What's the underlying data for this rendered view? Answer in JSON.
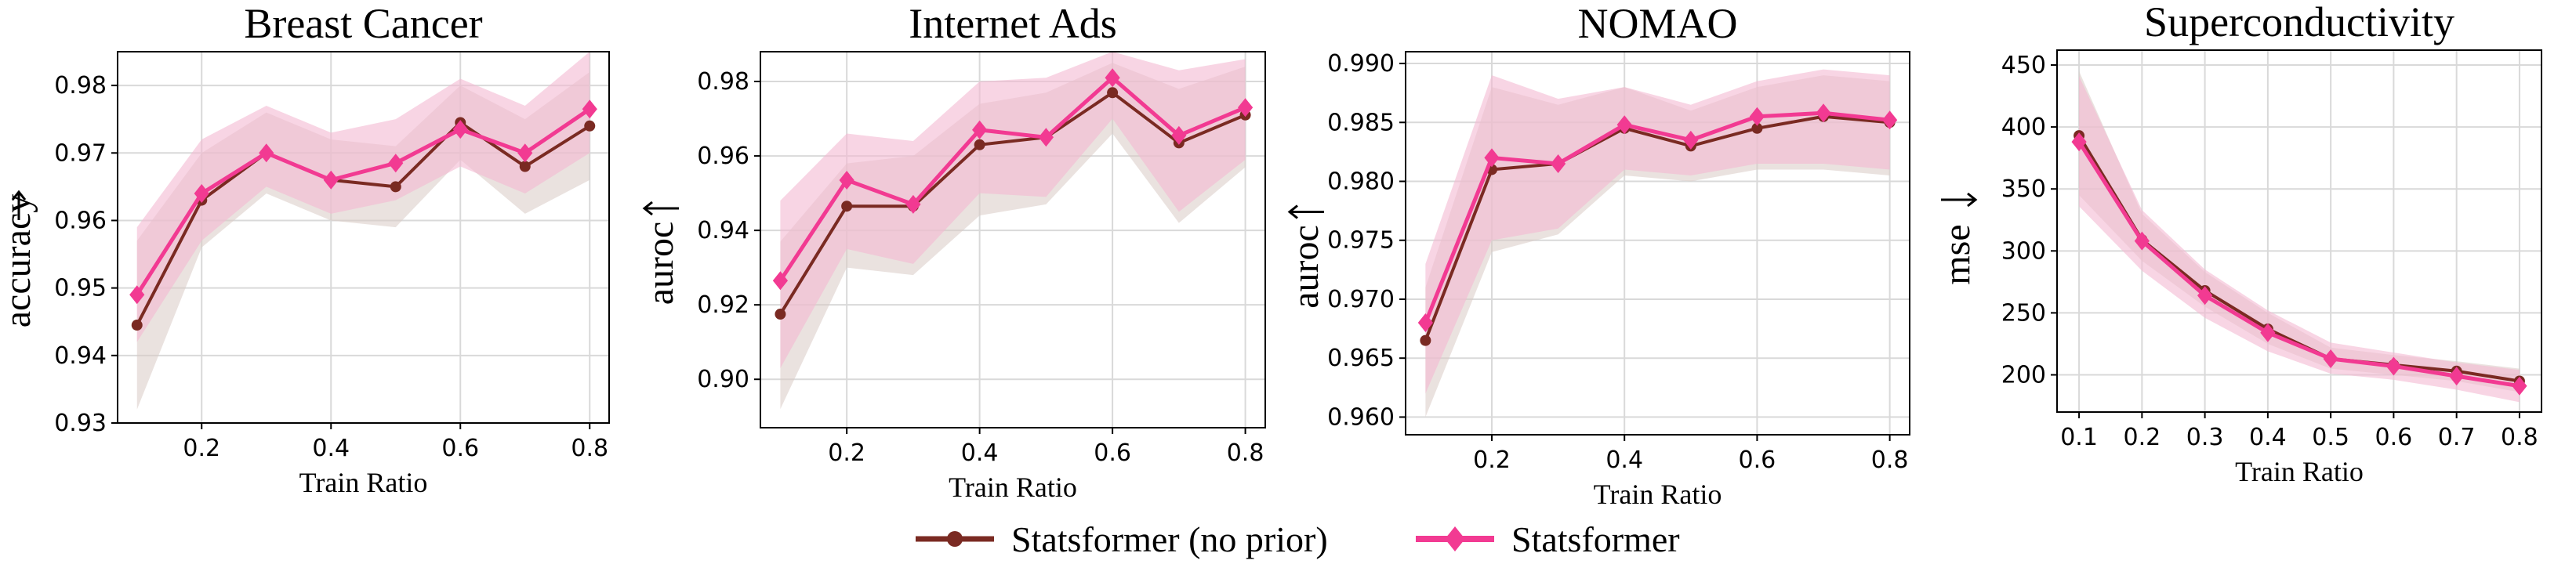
{
  "chart_data": [
    {
      "type": "line",
      "title": "Breast Cancer",
      "xlabel": "Train Ratio",
      "ylabel": "accuracy",
      "arrow": "up",
      "xlim": [
        0.07,
        0.83
      ],
      "ylim": [
        0.93,
        0.985
      ],
      "xticks": [
        0.2,
        0.4,
        0.6,
        0.8
      ],
      "xtick_labels": [
        "0.2",
        "0.4",
        "0.6",
        "0.8"
      ],
      "yticks": [
        0.93,
        0.94,
        0.95,
        0.96,
        0.97,
        0.98
      ],
      "ytick_labels": [
        "0.93",
        "0.94",
        "0.95",
        "0.96",
        "0.97",
        "0.98"
      ],
      "grid": true,
      "x": [
        0.1,
        0.2,
        0.3,
        0.4,
        0.5,
        0.6,
        0.7,
        0.8
      ],
      "series": [
        {
          "name": "Statsformer (no prior)",
          "values": [
            0.9445,
            0.963,
            0.97,
            0.966,
            0.965,
            0.9745,
            0.968,
            0.974
          ],
          "lower": [
            0.932,
            0.956,
            0.964,
            0.96,
            0.959,
            0.969,
            0.961,
            0.966
          ],
          "upper": [
            0.957,
            0.97,
            0.976,
            0.972,
            0.971,
            0.98,
            0.975,
            0.982
          ]
        },
        {
          "name": "Statsformer",
          "values": [
            0.949,
            0.964,
            0.97,
            0.966,
            0.9685,
            0.9735,
            0.97,
            0.9765
          ],
          "lower": [
            0.942,
            0.957,
            0.965,
            0.961,
            0.963,
            0.968,
            0.964,
            0.97
          ],
          "upper": [
            0.959,
            0.972,
            0.977,
            0.973,
            0.975,
            0.981,
            0.977,
            0.985
          ]
        }
      ]
    },
    {
      "type": "line",
      "title": "Internet Ads",
      "xlabel": "Train Ratio",
      "ylabel": "auroc",
      "arrow": "left",
      "xlim": [
        0.07,
        0.83
      ],
      "ylim": [
        0.887,
        0.988
      ],
      "xticks": [
        0.2,
        0.4,
        0.6,
        0.8
      ],
      "xtick_labels": [
        "0.2",
        "0.4",
        "0.6",
        "0.8"
      ],
      "yticks": [
        0.9,
        0.92,
        0.94,
        0.96,
        0.98
      ],
      "ytick_labels": [
        "0.90",
        "0.92",
        "0.94",
        "0.96",
        "0.98"
      ],
      "grid": true,
      "x": [
        0.1,
        0.2,
        0.3,
        0.4,
        0.5,
        0.6,
        0.7,
        0.8
      ],
      "series": [
        {
          "name": "Statsformer (no prior)",
          "values": [
            0.9175,
            0.9465,
            0.9465,
            0.963,
            0.965,
            0.977,
            0.9635,
            0.971
          ],
          "lower": [
            0.892,
            0.93,
            0.928,
            0.944,
            0.947,
            0.966,
            0.942,
            0.957
          ],
          "upper": [
            0.937,
            0.958,
            0.96,
            0.974,
            0.977,
            0.985,
            0.978,
            0.984
          ]
        },
        {
          "name": "Statsformer",
          "values": [
            0.9265,
            0.9535,
            0.947,
            0.967,
            0.965,
            0.981,
            0.9655,
            0.973
          ],
          "lower": [
            0.903,
            0.935,
            0.931,
            0.95,
            0.949,
            0.97,
            0.945,
            0.959
          ],
          "upper": [
            0.948,
            0.966,
            0.964,
            0.98,
            0.981,
            0.988,
            0.983,
            0.986
          ]
        }
      ]
    },
    {
      "type": "line",
      "title": "NOMAO",
      "xlabel": "Train Ratio",
      "ylabel": "auroc",
      "arrow": "left",
      "xlim": [
        0.07,
        0.83
      ],
      "ylim": [
        0.9585,
        0.991
      ],
      "xticks": [
        0.2,
        0.4,
        0.6,
        0.8
      ],
      "xtick_labels": [
        "0.2",
        "0.4",
        "0.6",
        "0.8"
      ],
      "yticks": [
        0.96,
        0.965,
        0.97,
        0.975,
        0.98,
        0.985,
        0.99
      ],
      "ytick_labels": [
        "0.960",
        "0.965",
        "0.970",
        "0.975",
        "0.980",
        "0.985",
        "0.990"
      ],
      "grid": true,
      "x": [
        0.1,
        0.2,
        0.3,
        0.4,
        0.5,
        0.6,
        0.7,
        0.8
      ],
      "series": [
        {
          "name": "Statsformer (no prior)",
          "values": [
            0.9665,
            0.981,
            0.9815,
            0.9845,
            0.983,
            0.9845,
            0.9855,
            0.985
          ],
          "lower": [
            0.96,
            0.974,
            0.9755,
            0.9805,
            0.98,
            0.981,
            0.981,
            0.9805
          ],
          "upper": [
            0.971,
            0.988,
            0.9865,
            0.988,
            0.986,
            0.988,
            0.989,
            0.9885
          ]
        },
        {
          "name": "Statsformer",
          "values": [
            0.968,
            0.982,
            0.9815,
            0.9848,
            0.9835,
            0.9855,
            0.9858,
            0.9852
          ],
          "lower": [
            0.962,
            0.975,
            0.976,
            0.981,
            0.9805,
            0.9815,
            0.9815,
            0.981
          ],
          "upper": [
            0.973,
            0.989,
            0.987,
            0.988,
            0.9865,
            0.9885,
            0.9895,
            0.989
          ]
        }
      ]
    },
    {
      "type": "line",
      "title": "Superconductivity",
      "xlabel": "Train Ratio",
      "ylabel": "mse",
      "arrow": "right",
      "xlim": [
        0.065,
        0.835
      ],
      "ylim": [
        170,
        462
      ],
      "xticks": [
        0.1,
        0.2,
        0.3,
        0.4,
        0.5,
        0.6,
        0.7,
        0.8
      ],
      "xtick_labels": [
        "0.1",
        "0.2",
        "0.3",
        "0.4",
        "0.5",
        "0.6",
        "0.7",
        "0.8"
      ],
      "yticks": [
        200,
        250,
        300,
        350,
        400,
        450
      ],
      "ytick_labels": [
        "200",
        "250",
        "300",
        "350",
        "400",
        "450"
      ],
      "grid": true,
      "x": [
        0.1,
        0.2,
        0.3,
        0.4,
        0.5,
        0.6,
        0.7,
        0.8
      ],
      "series": [
        {
          "name": "Statsformer (no prior)",
          "values": [
            393,
            309,
            268,
            237,
            213,
            208,
            203,
            195
          ],
          "lower": [
            345,
            292,
            255,
            225,
            205,
            200,
            195,
            186
          ],
          "upper": [
            445,
            330,
            283,
            250,
            222,
            216,
            211,
            205
          ]
        },
        {
          "name": "Statsformer",
          "values": [
            388,
            308,
            264,
            234,
            213,
            207,
            199,
            191
          ],
          "lower": [
            336,
            284,
            246,
            219,
            201,
            196,
            188,
            178
          ],
          "upper": [
            441,
            333,
            285,
            252,
            226,
            218,
            210,
            204
          ]
        }
      ]
    }
  ],
  "legend": {
    "items": [
      {
        "label": "Statsformer (no prior)",
        "color": "#7a2a22",
        "marker": "circle"
      },
      {
        "label": "Statsformer",
        "color": "#f23a92",
        "marker": "diamond"
      }
    ]
  },
  "colors": {
    "no_prior_line": "#7a2a22",
    "no_prior_band": "#d8cac4",
    "statsformer_line": "#f23a92",
    "statsformer_band": "#f3b9d2"
  }
}
